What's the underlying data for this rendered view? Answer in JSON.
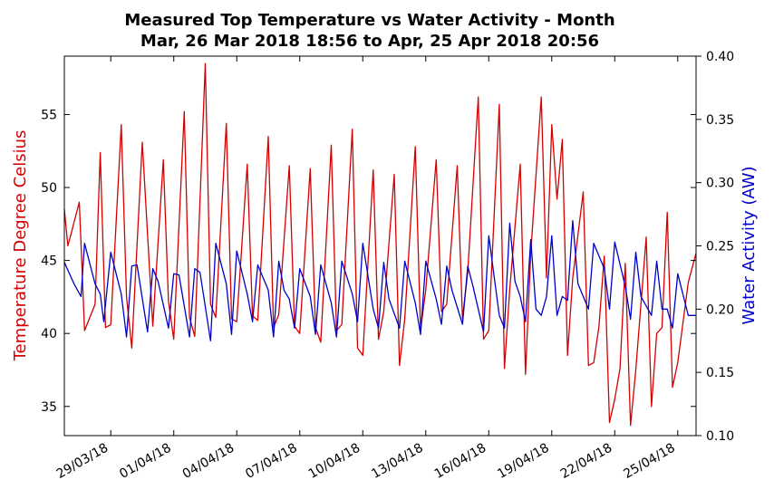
{
  "chart_data": {
    "type": "line",
    "title": "Measured Top Temperature vs Water Activity - Month",
    "subtitle": "Mar, 26 Mar 2018 18:56 to Apr, 25 Apr 2018 20:56",
    "x_range": [
      "2018-03-26 18:56",
      "2018-04-25 20:56"
    ],
    "x_ticks": [
      "29/03/18",
      "01/04/18",
      "04/04/18",
      "07/04/18",
      "10/04/18",
      "13/04/18",
      "16/04/18",
      "19/04/18",
      "22/04/18",
      "25/04/18"
    ],
    "x_tick_dates": [
      "2018-03-29",
      "2018-04-01",
      "2018-04-04",
      "2018-04-07",
      "2018-04-10",
      "2018-04-13",
      "2018-04-16",
      "2018-04-19",
      "2018-04-22",
      "2018-04-25"
    ],
    "ylabel_left": "Temperature Degree Celsius",
    "ylabel_right": "Water Activity (AW)",
    "ylim_left": [
      33,
      59
    ],
    "yticks_left": [
      35,
      40,
      45,
      50,
      55
    ],
    "ylim_right": [
      0.1,
      0.4
    ],
    "yticks_right": [
      0.1,
      0.15,
      0.2,
      0.25,
      0.3,
      0.35,
      0.4
    ],
    "grid": false,
    "colors": {
      "temperature": "#d40000",
      "water_activity": "#0000cc"
    },
    "series": [
      {
        "axis": "left",
        "color": "#d40000",
        "points": [
          [
            "2018-03-26 18:56",
            48.5
          ],
          [
            "2018-03-26 23:00",
            46.0
          ],
          [
            "2018-03-27 12:00",
            49.0
          ],
          [
            "2018-03-27 18:00",
            40.2
          ],
          [
            "2018-03-28 06:00",
            42.0
          ],
          [
            "2018-03-28 12:00",
            52.4
          ],
          [
            "2018-03-28 18:00",
            40.4
          ],
          [
            "2018-03-29 00:00",
            40.6
          ],
          [
            "2018-03-29 12:00",
            54.3
          ],
          [
            "2018-03-29 18:00",
            42.5
          ],
          [
            "2018-03-30 00:00",
            39.0
          ],
          [
            "2018-03-30 12:00",
            53.1
          ],
          [
            "2018-03-31 00:00",
            40.5
          ],
          [
            "2018-03-31 12:00",
            51.9
          ],
          [
            "2018-03-31 18:00",
            42.2
          ],
          [
            "2018-04-01 00:00",
            39.6
          ],
          [
            "2018-04-01 12:00",
            55.2
          ],
          [
            "2018-04-01 18:00",
            41.1
          ],
          [
            "2018-04-02 00:00",
            39.8
          ],
          [
            "2018-04-02 12:00",
            58.5
          ],
          [
            "2018-04-02 18:00",
            42.0
          ],
          [
            "2018-04-03 00:00",
            41.1
          ],
          [
            "2018-04-03 12:00",
            54.4
          ],
          [
            "2018-04-03 18:00",
            41.0
          ],
          [
            "2018-04-04 00:00",
            40.8
          ],
          [
            "2018-04-04 12:00",
            51.6
          ],
          [
            "2018-04-04 18:00",
            41.2
          ],
          [
            "2018-04-05 00:00",
            40.9
          ],
          [
            "2018-04-05 12:00",
            53.5
          ],
          [
            "2018-04-05 18:00",
            40.4
          ],
          [
            "2018-04-06 00:00",
            41.3
          ],
          [
            "2018-04-06 12:00",
            51.5
          ],
          [
            "2018-04-06 18:00",
            40.5
          ],
          [
            "2018-04-07 00:00",
            40.0
          ],
          [
            "2018-04-07 12:00",
            51.3
          ],
          [
            "2018-04-07 18:00",
            40.4
          ],
          [
            "2018-04-08 00:00",
            39.4
          ],
          [
            "2018-04-08 12:00",
            52.9
          ],
          [
            "2018-04-08 18:00",
            40.2
          ],
          [
            "2018-04-09 00:00",
            40.6
          ],
          [
            "2018-04-09 12:00",
            54.0
          ],
          [
            "2018-04-09 18:00",
            39.0
          ],
          [
            "2018-04-10 00:00",
            38.5
          ],
          [
            "2018-04-10 12:00",
            51.2
          ],
          [
            "2018-04-10 18:00",
            39.6
          ],
          [
            "2018-04-11 00:00",
            41.5
          ],
          [
            "2018-04-11 12:00",
            50.9
          ],
          [
            "2018-04-11 18:00",
            37.8
          ],
          [
            "2018-04-12 00:00",
            41.0
          ],
          [
            "2018-04-12 12:00",
            52.8
          ],
          [
            "2018-04-12 18:00",
            40.2
          ],
          [
            "2018-04-13 00:00",
            43.0
          ],
          [
            "2018-04-13 12:00",
            51.9
          ],
          [
            "2018-04-13 18:00",
            41.5
          ],
          [
            "2018-04-14 00:00",
            42.0
          ],
          [
            "2018-04-14 12:00",
            51.5
          ],
          [
            "2018-04-14 18:00",
            41.0
          ],
          [
            "2018-04-15 00:00",
            44.2
          ],
          [
            "2018-04-15 12:00",
            56.2
          ],
          [
            "2018-04-15 18:00",
            39.6
          ],
          [
            "2018-04-16 00:00",
            40.2
          ],
          [
            "2018-04-16 12:00",
            55.7
          ],
          [
            "2018-04-16 18:00",
            37.6
          ],
          [
            "2018-04-17 00:00",
            43.0
          ],
          [
            "2018-04-17 12:00",
            51.6
          ],
          [
            "2018-04-17 18:00",
            37.2
          ],
          [
            "2018-04-18 00:00",
            45.5
          ],
          [
            "2018-04-18 12:00",
            56.2
          ],
          [
            "2018-04-18 18:00",
            43.8
          ],
          [
            "2018-04-19 00:00",
            54.3
          ],
          [
            "2018-04-19 06:00",
            49.2
          ],
          [
            "2018-04-19 12:00",
            53.3
          ],
          [
            "2018-04-19 18:00",
            38.5
          ],
          [
            "2018-04-20 00:00",
            43.8
          ],
          [
            "2018-04-20 12:00",
            49.7
          ],
          [
            "2018-04-20 18:00",
            37.8
          ],
          [
            "2018-04-21 00:00",
            38.0
          ],
          [
            "2018-04-21 06:00",
            40.5
          ],
          [
            "2018-04-21 12:00",
            45.3
          ],
          [
            "2018-04-21 18:00",
            33.9
          ],
          [
            "2018-04-22 00:00",
            35.5
          ],
          [
            "2018-04-22 06:00",
            37.6
          ],
          [
            "2018-04-22 12:00",
            44.8
          ],
          [
            "2018-04-22 18:00",
            33.7
          ],
          [
            "2018-04-23 00:00",
            37.5
          ],
          [
            "2018-04-23 12:00",
            46.6
          ],
          [
            "2018-04-23 18:00",
            35.0
          ],
          [
            "2018-04-24 00:00",
            40.0
          ],
          [
            "2018-04-24 06:00",
            40.4
          ],
          [
            "2018-04-24 12:00",
            48.3
          ],
          [
            "2018-04-24 18:00",
            36.3
          ],
          [
            "2018-04-25 00:00",
            38.0
          ],
          [
            "2018-04-25 12:00",
            43.5
          ],
          [
            "2018-04-25 20:56",
            45.5
          ]
        ]
      },
      {
        "axis": "right",
        "color": "#0000cc",
        "points": [
          [
            "2018-03-26 18:56",
            0.237
          ],
          [
            "2018-03-27 06:00",
            0.22
          ],
          [
            "2018-03-27 14:00",
            0.21
          ],
          [
            "2018-03-27 18:00",
            0.252
          ],
          [
            "2018-03-28 06:00",
            0.22
          ],
          [
            "2018-03-28 12:00",
            0.212
          ],
          [
            "2018-03-28 16:00",
            0.19
          ],
          [
            "2018-03-29 00:00",
            0.245
          ],
          [
            "2018-03-29 12:00",
            0.212
          ],
          [
            "2018-03-29 18:00",
            0.178
          ],
          [
            "2018-03-30 00:00",
            0.234
          ],
          [
            "2018-03-30 06:00",
            0.235
          ],
          [
            "2018-03-30 18:00",
            0.182
          ],
          [
            "2018-03-31 00:00",
            0.232
          ],
          [
            "2018-03-31 06:00",
            0.222
          ],
          [
            "2018-03-31 18:00",
            0.185
          ],
          [
            "2018-04-01 00:00",
            0.228
          ],
          [
            "2018-04-01 06:00",
            0.227
          ],
          [
            "2018-04-01 18:00",
            0.178
          ],
          [
            "2018-04-02 00:00",
            0.232
          ],
          [
            "2018-04-02 06:00",
            0.229
          ],
          [
            "2018-04-02 18:00",
            0.175
          ],
          [
            "2018-04-03 00:00",
            0.252
          ],
          [
            "2018-04-03 12:00",
            0.22
          ],
          [
            "2018-04-03 18:00",
            0.18
          ],
          [
            "2018-04-04 00:00",
            0.246
          ],
          [
            "2018-04-04 12:00",
            0.212
          ],
          [
            "2018-04-04 18:00",
            0.19
          ],
          [
            "2018-04-05 00:00",
            0.235
          ],
          [
            "2018-04-05 12:00",
            0.215
          ],
          [
            "2018-04-05 18:00",
            0.178
          ],
          [
            "2018-04-06 00:00",
            0.238
          ],
          [
            "2018-04-06 06:00",
            0.215
          ],
          [
            "2018-04-06 12:00",
            0.208
          ],
          [
            "2018-04-06 18:00",
            0.185
          ],
          [
            "2018-04-07 00:00",
            0.232
          ],
          [
            "2018-04-07 12:00",
            0.21
          ],
          [
            "2018-04-07 18:00",
            0.18
          ],
          [
            "2018-04-08 00:00",
            0.235
          ],
          [
            "2018-04-08 12:00",
            0.205
          ],
          [
            "2018-04-08 18:00",
            0.178
          ],
          [
            "2018-04-09 00:00",
            0.238
          ],
          [
            "2018-04-09 12:00",
            0.212
          ],
          [
            "2018-04-09 18:00",
            0.19
          ],
          [
            "2018-04-10 00:00",
            0.252
          ],
          [
            "2018-04-10 12:00",
            0.2
          ],
          [
            "2018-04-10 18:00",
            0.185
          ],
          [
            "2018-04-11 00:00",
            0.237
          ],
          [
            "2018-04-11 06:00",
            0.208
          ],
          [
            "2018-04-11 18:00",
            0.185
          ],
          [
            "2018-04-12 00:00",
            0.238
          ],
          [
            "2018-04-12 12:00",
            0.205
          ],
          [
            "2018-04-12 18:00",
            0.18
          ],
          [
            "2018-04-13 00:00",
            0.238
          ],
          [
            "2018-04-13 12:00",
            0.208
          ],
          [
            "2018-04-13 18:00",
            0.188
          ],
          [
            "2018-04-14 00:00",
            0.234
          ],
          [
            "2018-04-14 06:00",
            0.215
          ],
          [
            "2018-04-14 18:00",
            0.188
          ],
          [
            "2018-04-15 00:00",
            0.234
          ],
          [
            "2018-04-15 06:00",
            0.218
          ],
          [
            "2018-04-15 18:00",
            0.182
          ],
          [
            "2018-04-16 00:00",
            0.258
          ],
          [
            "2018-04-16 12:00",
            0.195
          ],
          [
            "2018-04-16 18:00",
            0.185
          ],
          [
            "2018-04-17 00:00",
            0.268
          ],
          [
            "2018-04-17 06:00",
            0.222
          ],
          [
            "2018-04-17 12:00",
            0.21
          ],
          [
            "2018-04-17 18:00",
            0.19
          ],
          [
            "2018-04-18 00:00",
            0.255
          ],
          [
            "2018-04-18 06:00",
            0.2
          ],
          [
            "2018-04-18 12:00",
            0.195
          ],
          [
            "2018-04-18 18:00",
            0.21
          ],
          [
            "2018-04-19 00:00",
            0.258
          ],
          [
            "2018-04-19 06:00",
            0.195
          ],
          [
            "2018-04-19 12:00",
            0.21
          ],
          [
            "2018-04-19 18:00",
            0.207
          ],
          [
            "2018-04-20 00:00",
            0.27
          ],
          [
            "2018-04-20 06:00",
            0.22
          ],
          [
            "2018-04-20 18:00",
            0.2
          ],
          [
            "2018-04-21 00:00",
            0.252
          ],
          [
            "2018-04-21 12:00",
            0.232
          ],
          [
            "2018-04-21 18:00",
            0.2
          ],
          [
            "2018-04-22 00:00",
            0.253
          ],
          [
            "2018-04-22 12:00",
            0.218
          ],
          [
            "2018-04-22 18:00",
            0.192
          ],
          [
            "2018-04-23 00:00",
            0.245
          ],
          [
            "2018-04-23 06:00",
            0.21
          ],
          [
            "2018-04-23 18:00",
            0.195
          ],
          [
            "2018-04-24 00:00",
            0.238
          ],
          [
            "2018-04-24 06:00",
            0.2
          ],
          [
            "2018-04-24 12:00",
            0.2
          ],
          [
            "2018-04-24 18:00",
            0.185
          ],
          [
            "2018-04-25 00:00",
            0.228
          ],
          [
            "2018-04-25 12:00",
            0.195
          ],
          [
            "2018-04-25 20:56",
            0.195
          ]
        ]
      }
    ]
  }
}
